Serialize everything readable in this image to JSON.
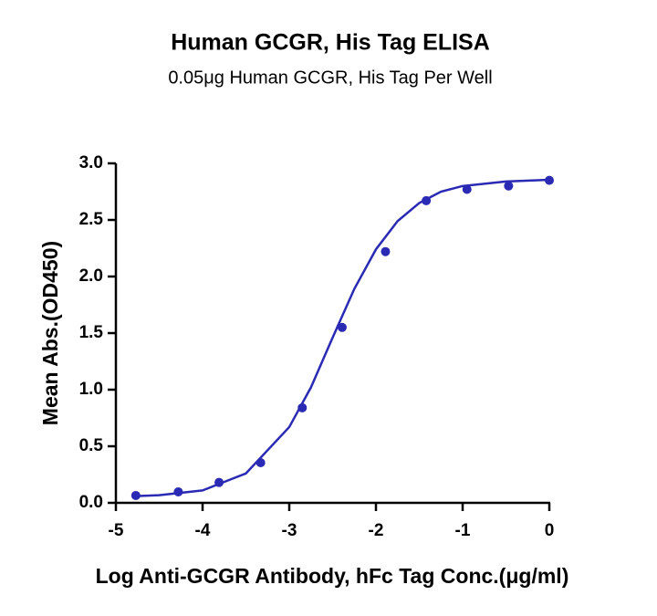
{
  "chart_data": {
    "type": "scatter",
    "title": "Human GCGR, His Tag ELISA",
    "subtitle": "0.05μg Human GCGR, His Tag Per Well",
    "x_label": "Log Anti-GCGR Antibody, hFc Tag Conc.(μg/ml)",
    "y_label": "Mean Abs.(OD450)",
    "xlim": [
      -5,
      0
    ],
    "xticks": [
      -5,
      -4,
      -3,
      -2,
      -1,
      0
    ],
    "ylim": [
      0,
      3
    ],
    "yticks": [
      {
        "value": 0,
        "label": "0.0"
      },
      0.5,
      {
        "value": 1,
        "label": "1.0"
      },
      1.5,
      {
        "value": 2,
        "label": "2.0"
      },
      2.5,
      {
        "value": 3,
        "label": "3.0"
      }
    ],
    "series": [
      {
        "type": "scatter",
        "color": "#2a2ab4",
        "x": [
          -4.77,
          -4.28,
          -3.81,
          -3.33,
          -2.85,
          -2.39,
          -1.89,
          -1.42,
          -0.95,
          -0.47,
          0
        ],
        "values": [
          0.065,
          0.097,
          0.18,
          0.355,
          0.84,
          1.55,
          2.22,
          2.67,
          2.77,
          2.8,
          2.85
        ]
      },
      {
        "type": "line",
        "color": "#2a2ab4",
        "x": [
          -4.77,
          -4.5,
          -4,
          -3.5,
          -3,
          -2.75,
          -2.5,
          -2.25,
          -2,
          -1.75,
          -1.5,
          -1.25,
          -1,
          -0.5,
          0
        ],
        "values": [
          0.059,
          0.068,
          0.11,
          0.26,
          0.67,
          1.02,
          1.46,
          1.89,
          2.24,
          2.49,
          2.65,
          2.75,
          2.8,
          2.84,
          2.855
        ]
      }
    ]
  }
}
